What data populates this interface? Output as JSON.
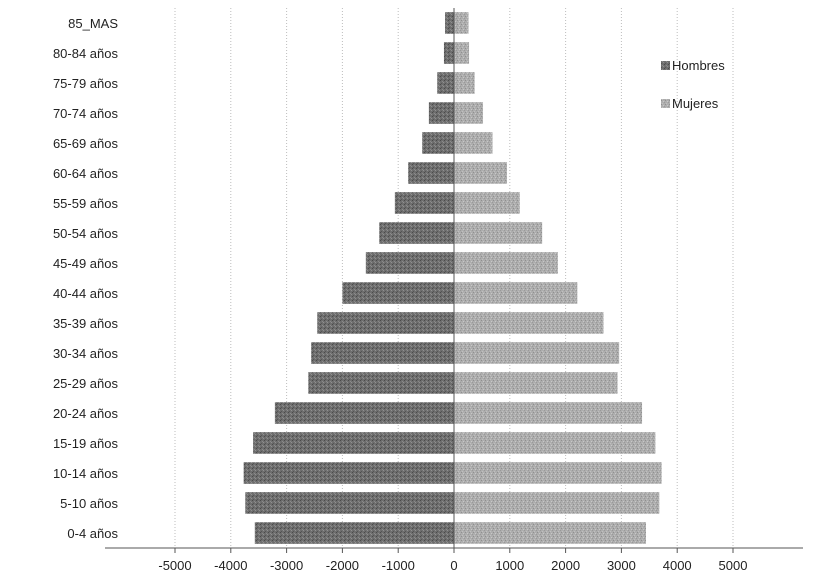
{
  "chart_data": {
    "type": "bar",
    "orientation": "horizontal",
    "stacking": "diverging",
    "categories": [
      "0-4 años",
      "5-10 años",
      "10-14 años",
      "15-19 años",
      "20-24 años",
      "25-29 años",
      "30-34 años",
      "35-39 años",
      "40-44 años",
      "45-49 años",
      "50-54 años",
      "55-59 años",
      "60-64 años",
      "65-69 años",
      "70-74 años",
      "75-79 años",
      "80-84 años",
      "85_MAS"
    ],
    "series": [
      {
        "name": "Hombres",
        "color": "#6e6e6e",
        "values": [
          -3570,
          -3740,
          -3770,
          -3600,
          -3210,
          -2610,
          -2560,
          -2450,
          -2000,
          -1580,
          -1340,
          -1060,
          -820,
          -570,
          -450,
          -300,
          -180,
          -160
        ]
      },
      {
        "name": "Mujeres",
        "color": "#adadad",
        "values": [
          3440,
          3680,
          3720,
          3610,
          3370,
          2930,
          2960,
          2680,
          2210,
          1860,
          1580,
          1180,
          950,
          690,
          520,
          370,
          270,
          260
        ]
      }
    ],
    "x_ticks": [
      "-5000",
      "-4000",
      "-3000",
      "-2000",
      "-1000",
      "0",
      "1000",
      "2000",
      "3000",
      "4000",
      "5000"
    ],
    "xlim": [
      -5000,
      5000
    ],
    "grid": "vertical",
    "legend_position": "top-right",
    "title": "",
    "xlabel": "",
    "ylabel": ""
  }
}
